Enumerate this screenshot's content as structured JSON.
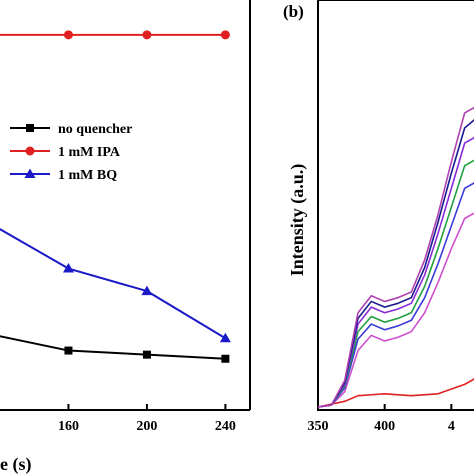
{
  "chart_data": [
    {
      "panel": "(a)",
      "type": "line",
      "title": "",
      "xlabel": "e (s)",
      "ylabel": "",
      "x_tick_labels": [
        "160",
        "200",
        "240"
      ],
      "x": [
        120,
        160,
        200,
        240
      ],
      "xlim": [
        120,
        250
      ],
      "ylim": [
        0,
        1.0
      ],
      "legend_position": "center-left",
      "series": [
        {
          "name": "no quencher",
          "color": "#000000",
          "marker": "square",
          "values": [
            0.185,
            0.145,
            0.135,
            0.125
          ]
        },
        {
          "name": "1 mM IPA",
          "color": "#e02020",
          "marker": "circle",
          "values": [
            0.915,
            0.915,
            0.915,
            0.915
          ]
        },
        {
          "name": "1 mM BQ",
          "color": "#1a1ac8",
          "marker": "triangle",
          "values": [
            0.455,
            0.345,
            0.29,
            0.175
          ]
        }
      ]
    },
    {
      "panel": "(b)",
      "type": "line",
      "title": "",
      "xlabel": "",
      "ylabel": "Intensity (a.u.)",
      "x_tick_labels": [
        "350",
        "400",
        "4"
      ],
      "xlim": [
        350,
        470
      ],
      "ylim": [
        0,
        1.0
      ],
      "legend_position": "none",
      "series": [
        {
          "color": "#e02020",
          "x": [
            350,
            370,
            380,
            400,
            420,
            440,
            460,
            470
          ],
          "values": [
            0.0,
            0.015,
            0.03,
            0.035,
            0.03,
            0.035,
            0.06,
            0.08
          ]
        },
        {
          "color": "#d050d0",
          "x": [
            350,
            360,
            370,
            380,
            390,
            400,
            410,
            420,
            430,
            440,
            450,
            460,
            470
          ],
          "values": [
            0.0,
            0.005,
            0.04,
            0.15,
            0.19,
            0.175,
            0.185,
            0.2,
            0.25,
            0.33,
            0.42,
            0.5,
            0.52
          ]
        },
        {
          "color": "#3a3ad8",
          "x": [
            350,
            360,
            370,
            380,
            390,
            400,
            410,
            420,
            430,
            440,
            450,
            460,
            470
          ],
          "values": [
            0.0,
            0.005,
            0.05,
            0.18,
            0.22,
            0.205,
            0.215,
            0.23,
            0.29,
            0.38,
            0.48,
            0.58,
            0.6
          ]
        },
        {
          "color": "#20a040",
          "x": [
            350,
            360,
            370,
            380,
            390,
            400,
            410,
            420,
            430,
            440,
            450,
            460,
            470
          ],
          "values": [
            0.0,
            0.005,
            0.055,
            0.2,
            0.24,
            0.225,
            0.235,
            0.25,
            0.32,
            0.42,
            0.53,
            0.64,
            0.66
          ]
        },
        {
          "color": "#8a2ad8",
          "x": [
            350,
            360,
            370,
            380,
            390,
            400,
            410,
            420,
            430,
            440,
            450,
            460,
            470
          ],
          "values": [
            0.0,
            0.005,
            0.06,
            0.22,
            0.265,
            0.25,
            0.26,
            0.275,
            0.35,
            0.46,
            0.58,
            0.7,
            0.72
          ]
        },
        {
          "color": "#1a1a90",
          "x": [
            350,
            360,
            370,
            380,
            390,
            400,
            410,
            420,
            430,
            440,
            450,
            460,
            470
          ],
          "values": [
            0.0,
            0.005,
            0.065,
            0.235,
            0.28,
            0.265,
            0.275,
            0.29,
            0.37,
            0.49,
            0.62,
            0.74,
            0.77
          ]
        },
        {
          "color": "#b040b0",
          "x": [
            350,
            360,
            370,
            380,
            390,
            400,
            410,
            420,
            430,
            440,
            450,
            460,
            470
          ],
          "values": [
            0.0,
            0.005,
            0.07,
            0.25,
            0.295,
            0.28,
            0.29,
            0.305,
            0.39,
            0.51,
            0.65,
            0.78,
            0.8
          ]
        }
      ]
    }
  ]
}
